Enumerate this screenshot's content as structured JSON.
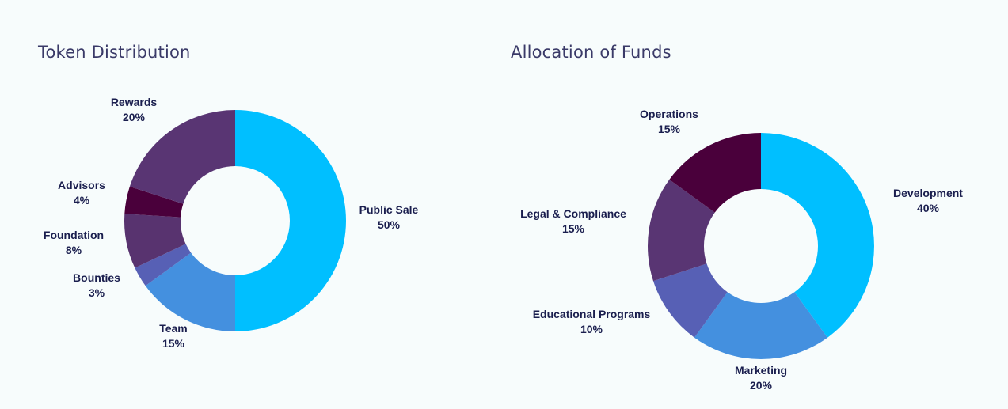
{
  "chart_data": [
    {
      "type": "pie",
      "title": "Token Distribution",
      "slices": [
        {
          "label": "Public Sale",
          "percent_text": "50%",
          "value": 50,
          "color": "#00bfff"
        },
        {
          "label": "Team",
          "percent_text": "15%",
          "value": 15,
          "color": "#4490df"
        },
        {
          "label": "Bounties",
          "percent_text": "3%",
          "value": 3,
          "color": "#5760b5"
        },
        {
          "label": "Foundation",
          "percent_text": "8%",
          "value": 8,
          "color": "#58336f"
        },
        {
          "label": "Advisors",
          "percent_text": "4%",
          "value": 4,
          "color": "#4a003b"
        },
        {
          "label": "Rewards",
          "percent_text": "20%",
          "value": 20,
          "color": "#593573"
        }
      ]
    },
    {
      "type": "pie",
      "title": "Allocation of Funds",
      "slices": [
        {
          "label": "Development",
          "percent_text": "40%",
          "value": 40,
          "color": "#00bfff"
        },
        {
          "label": "Marketing",
          "percent_text": "20%",
          "value": 20,
          "color": "#4490df"
        },
        {
          "label": "Educational Programs",
          "percent_text": "10%",
          "value": 10,
          "color": "#5760b5"
        },
        {
          "label": "Legal & Compliance",
          "percent_text": "15%",
          "value": 15,
          "color": "#593573"
        },
        {
          "label": "Operations",
          "percent_text": "15%",
          "value": 15,
          "color": "#4a003b"
        }
      ]
    }
  ]
}
